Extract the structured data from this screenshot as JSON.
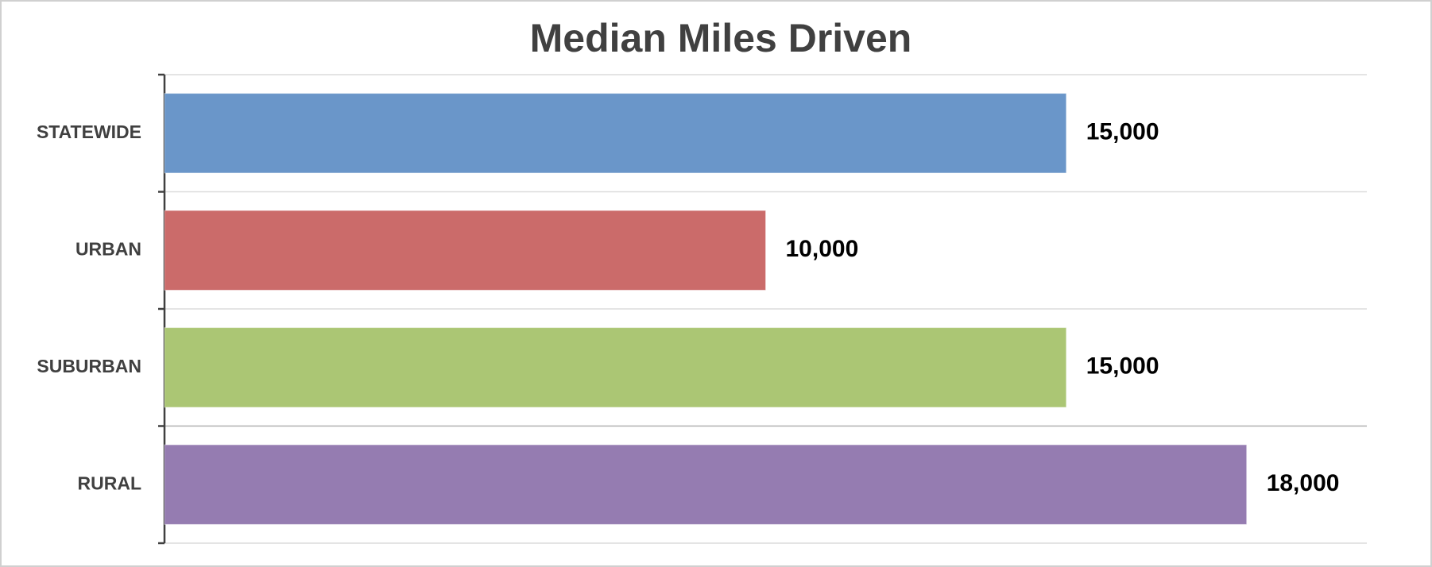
{
  "chart_data": {
    "type": "bar",
    "orientation": "horizontal",
    "title": "Median Miles Driven",
    "categories": [
      "STATEWIDE",
      "URBAN",
      "SUBURBAN",
      "RURAL"
    ],
    "values": [
      15000,
      10000,
      15000,
      18000
    ],
    "value_labels": [
      "15,000",
      "10,000",
      "15,000",
      "18,000"
    ],
    "colors": [
      "#6a96c9",
      "#cb6b6a",
      "#abc674",
      "#957cb1"
    ],
    "xlim": [
      0,
      20000
    ],
    "grid": true
  }
}
